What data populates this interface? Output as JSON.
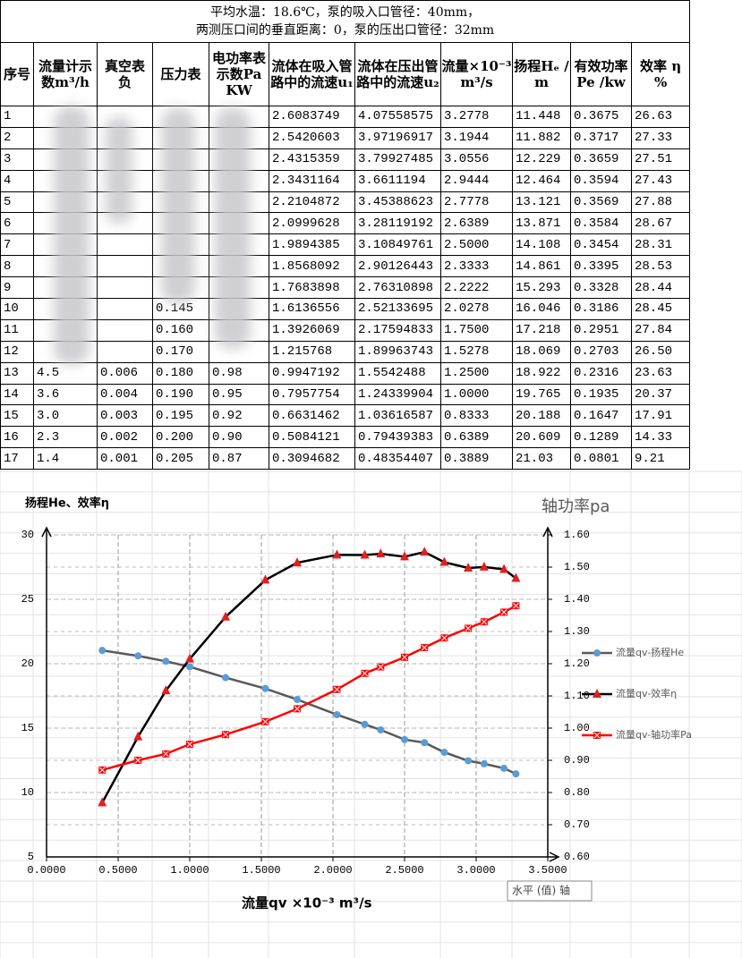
{
  "table": {
    "title_lines": [
      "平均水温：18.6℃，泵的吸入口管径：40mm，",
      "两测压口间的垂直距离：0，泵的压出口管径：32mm"
    ],
    "headers": [
      "序号",
      "流量计示数m³/h",
      "真空表 负",
      "压力表",
      "电功率表示数Pa KW",
      "流体在吸入管路中的流速u₁",
      "流体在压出管路中的流速u₂",
      "流量×10⁻³m³/s",
      "扬程Hₑ /m",
      "有效功率Pe /kw",
      "效率 η %"
    ],
    "rows": [
      [
        "1",
        null,
        null,
        null,
        null,
        "2.6083749",
        "4.07558575",
        "3.2778",
        "11.448",
        "0.3675",
        "26.63"
      ],
      [
        "2",
        null,
        null,
        null,
        null,
        "2.5420603",
        "3.97196917",
        "3.1944",
        "11.882",
        "0.3717",
        "27.33"
      ],
      [
        "3",
        null,
        null,
        null,
        null,
        "2.4315359",
        "3.79927485",
        "3.0556",
        "12.229",
        "0.3659",
        "27.51"
      ],
      [
        "4",
        null,
        null,
        null,
        null,
        "2.3431164",
        "3.6611194",
        "2.9444",
        "12.464",
        "0.3594",
        "27.43"
      ],
      [
        "5",
        null,
        null,
        null,
        null,
        "2.2104872",
        "3.45388623",
        "2.7778",
        "13.121",
        "0.3569",
        "27.88"
      ],
      [
        "6",
        null,
        null,
        null,
        null,
        "2.0999628",
        "3.28119192",
        "2.6389",
        "13.871",
        "0.3584",
        "28.67"
      ],
      [
        "7",
        null,
        null,
        null,
        null,
        "1.9894385",
        "3.10849761",
        "2.5000",
        "14.108",
        "0.3454",
        "28.31"
      ],
      [
        "8",
        null,
        null,
        null,
        null,
        "1.8568092",
        "2.90126443",
        "2.3333",
        "14.861",
        "0.3395",
        "28.53"
      ],
      [
        "9",
        null,
        null,
        null,
        null,
        "1.7683898",
        "2.76310898",
        "2.2222",
        "15.293",
        "0.3328",
        "28.44"
      ],
      [
        "10",
        null,
        null,
        "0.145",
        null,
        "1.6136556",
        "2.52133695",
        "2.0278",
        "16.046",
        "0.3186",
        "28.45"
      ],
      [
        "11",
        null,
        null,
        "0.160",
        null,
        "1.3926069",
        "2.17594833",
        "1.7500",
        "17.218",
        "0.2951",
        "27.84"
      ],
      [
        "12",
        null,
        null,
        "0.170",
        null,
        "1.215768",
        "1.89963743",
        "1.5278",
        "18.069",
        "0.2703",
        "26.50"
      ],
      [
        "13",
        "4.5",
        "0.006",
        "0.180",
        "0.98",
        "0.9947192",
        "1.5542488",
        "1.2500",
        "18.922",
        "0.2316",
        "23.63"
      ],
      [
        "14",
        "3.6",
        "0.004",
        "0.190",
        "0.95",
        "0.7957754",
        "1.24339904",
        "1.0000",
        "19.765",
        "0.1935",
        "20.37"
      ],
      [
        "15",
        "3.0",
        "0.003",
        "0.195",
        "0.92",
        "0.6631462",
        "1.03616587",
        "0.8333",
        "20.188",
        "0.1647",
        "17.91"
      ],
      [
        "16",
        "2.3",
        "0.002",
        "0.200",
        "0.90",
        "0.5084121",
        "0.79439383",
        "0.6389",
        "20.609",
        "0.1289",
        "14.33"
      ],
      [
        "17",
        "1.4",
        "0.001",
        "0.205",
        "0.87",
        "0.3094682",
        "0.48354407",
        "0.3889",
        "21.03",
        "0.0801",
        "9.21"
      ]
    ]
  },
  "chart_data": {
    "type": "line",
    "y_title": "扬程He、效率η",
    "y2_title": "轴功率pa",
    "x_title": "流量qv ×10⁻³ m³/s",
    "tooltip": "水平 (值) 轴",
    "x": [
      3.2778,
      3.1944,
      3.0556,
      2.9444,
      2.7778,
      2.6389,
      2.5,
      2.3333,
      2.2222,
      2.0278,
      1.75,
      1.5278,
      1.25,
      1.0,
      0.8333,
      0.6389,
      0.3889
    ],
    "series": [
      {
        "name": "流量qv-扬程He",
        "color": "#595959",
        "marker_color": "#5b9bd5",
        "marker": "circle",
        "values": [
          11.448,
          11.882,
          12.229,
          12.464,
          13.121,
          13.871,
          14.108,
          14.861,
          15.293,
          16.046,
          17.218,
          18.069,
          18.922,
          19.765,
          20.188,
          20.609,
          21.03
        ]
      },
      {
        "name": "流量qv-效率η",
        "color": "#000000",
        "marker_color": "#e02020",
        "marker": "triangle",
        "values": [
          26.63,
          27.33,
          27.51,
          27.43,
          27.88,
          28.67,
          28.31,
          28.53,
          28.44,
          28.45,
          27.84,
          26.5,
          23.63,
          20.37,
          17.91,
          14.33,
          9.21
        ]
      },
      {
        "name": "流量qv-轴功率Pa",
        "color": "#ff0000",
        "marker_color": "#ff0000",
        "marker": "square-x",
        "axis": "y2",
        "values": [
          1.38,
          1.36,
          1.33,
          1.31,
          1.28,
          1.25,
          1.22,
          1.19,
          1.17,
          1.12,
          1.06,
          1.02,
          0.98,
          0.95,
          0.92,
          0.9,
          0.87
        ]
      }
    ],
    "xlim": [
      0,
      3.5
    ],
    "xticks": [
      {
        "value": 0,
        "label": "0.0000"
      },
      {
        "value": 0.5,
        "label": "0.5000"
      },
      {
        "value": 1,
        "label": "1.0000"
      },
      {
        "value": 1.5,
        "label": "1.5000"
      },
      {
        "value": 2,
        "label": "2.0000"
      },
      {
        "value": 2.5,
        "label": "2.5000"
      },
      {
        "value": 3,
        "label": "3.0000"
      },
      {
        "value": 3.5,
        "label": "3.5000"
      }
    ],
    "ylim": [
      5,
      30
    ],
    "yticks": [
      5,
      10,
      15,
      20,
      25,
      30
    ],
    "y2lim": [
      0.6,
      1.6
    ],
    "y2ticks": [
      {
        "value": 0.6,
        "label": "0.60"
      },
      {
        "value": 0.7,
        "label": "0.70"
      },
      {
        "value": 0.8,
        "label": "0.80"
      },
      {
        "value": 0.9,
        "label": "0.90"
      },
      {
        "value": 1.0,
        "label": "1.00"
      },
      {
        "value": 1.1,
        "label": "1.10"
      },
      {
        "value": 1.2,
        "label": "1.20"
      },
      {
        "value": 1.3,
        "label": "1.30"
      },
      {
        "value": 1.4,
        "label": "1.40"
      },
      {
        "value": 1.5,
        "label": "1.50"
      },
      {
        "value": 1.6,
        "label": "1.60"
      }
    ],
    "grid": true,
    "legend": "right"
  }
}
